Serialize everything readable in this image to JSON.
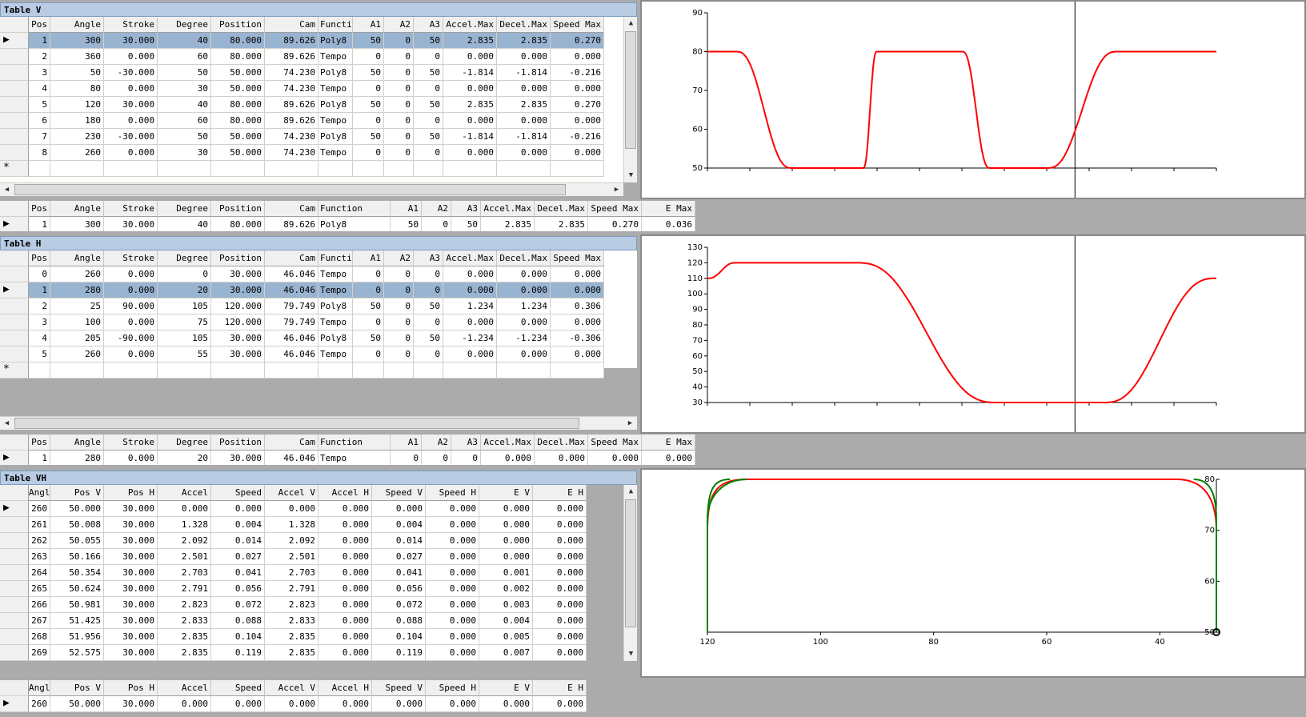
{
  "tableV": {
    "caption": "Table V",
    "headers": [
      "Pos",
      "Angle",
      "Stroke",
      "Degree",
      "Position",
      "Cam",
      "Functi",
      "A1",
      "A2",
      "A3",
      "Accel.Max",
      "Decel.Max",
      "Speed Max"
    ],
    "rows": [
      [
        "1",
        "300",
        "30.000",
        "40",
        "80.000",
        "89.626",
        "Poly8",
        "50",
        "0",
        "50",
        "2.835",
        "2.835",
        "0.270"
      ],
      [
        "2",
        "360",
        "0.000",
        "60",
        "80.000",
        "89.626",
        "Tempo",
        "0",
        "0",
        "0",
        "0.000",
        "0.000",
        "0.000"
      ],
      [
        "3",
        "50",
        "-30.000",
        "50",
        "50.000",
        "74.230",
        "Poly8",
        "50",
        "0",
        "50",
        "-1.814",
        "-1.814",
        "-0.216"
      ],
      [
        "4",
        "80",
        "0.000",
        "30",
        "50.000",
        "74.230",
        "Tempo",
        "0",
        "0",
        "0",
        "0.000",
        "0.000",
        "0.000"
      ],
      [
        "5",
        "120",
        "30.000",
        "40",
        "80.000",
        "89.626",
        "Poly8",
        "50",
        "0",
        "50",
        "2.835",
        "2.835",
        "0.270"
      ],
      [
        "6",
        "180",
        "0.000",
        "60",
        "80.000",
        "89.626",
        "Tempo",
        "0",
        "0",
        "0",
        "0.000",
        "0.000",
        "0.000"
      ],
      [
        "7",
        "230",
        "-30.000",
        "50",
        "50.000",
        "74.230",
        "Poly8",
        "50",
        "0",
        "50",
        "-1.814",
        "-1.814",
        "-0.216"
      ],
      [
        "8",
        "260",
        "0.000",
        "30",
        "50.000",
        "74.230",
        "Tempo",
        "0",
        "0",
        "0",
        "0.000",
        "0.000",
        "0.000"
      ]
    ],
    "selectedRow": 0,
    "newRowMarker": "*",
    "currentMarker": "▶"
  },
  "summaryV": {
    "headers": [
      "Pos",
      "Angle",
      "Stroke",
      "Degree",
      "Position",
      "Cam",
      "Function",
      "A1",
      "A2",
      "A3",
      "Accel.Max",
      "Decel.Max",
      "Speed Max",
      "E Max"
    ],
    "row": [
      "1",
      "300",
      "30.000",
      "40",
      "80.000",
      "89.626",
      "Poly8",
      "50",
      "0",
      "50",
      "2.835",
      "2.835",
      "0.270",
      "0.036"
    ]
  },
  "tableH": {
    "caption": "Table H",
    "headers": [
      "Pos",
      "Angle",
      "Stroke",
      "Degree",
      "Position",
      "Cam",
      "Function",
      "A1",
      "A2",
      "A3",
      "Accel.Max",
      "Decel.Max",
      "Speed Max"
    ],
    "rows": [
      [
        "0",
        "260",
        "0.000",
        "0",
        "30.000",
        "46.046",
        "Tempo",
        "0",
        "0",
        "0",
        "0.000",
        "0.000",
        "0.000"
      ],
      [
        "1",
        "280",
        "0.000",
        "20",
        "30.000",
        "46.046",
        "Tempo",
        "0",
        "0",
        "0",
        "0.000",
        "0.000",
        "0.000"
      ],
      [
        "2",
        "25",
        "90.000",
        "105",
        "120.000",
        "79.749",
        "Poly8",
        "50",
        "0",
        "50",
        "1.234",
        "1.234",
        "0.306"
      ],
      [
        "3",
        "100",
        "0.000",
        "75",
        "120.000",
        "79.749",
        "Tempo",
        "0",
        "0",
        "0",
        "0.000",
        "0.000",
        "0.000"
      ],
      [
        "4",
        "205",
        "-90.000",
        "105",
        "30.000",
        "46.046",
        "Poly8",
        "50",
        "0",
        "50",
        "-1.234",
        "-1.234",
        "-0.306"
      ],
      [
        "5",
        "260",
        "0.000",
        "55",
        "30.000",
        "46.046",
        "Tempo",
        "0",
        "0",
        "0",
        "0.000",
        "0.000",
        "0.000"
      ]
    ],
    "selectedRow": 1,
    "newRowMarker": "*",
    "currentMarker": "▶"
  },
  "summaryH": {
    "headers": [
      "Pos",
      "Angle",
      "Stroke",
      "Degree",
      "Position",
      "Cam",
      "Function",
      "A1",
      "A2",
      "A3",
      "Accel.Max",
      "Decel.Max",
      "Speed Max",
      "E Max"
    ],
    "row": [
      "1",
      "280",
      "0.000",
      "20",
      "30.000",
      "46.046",
      "Tempo",
      "0",
      "0",
      "0",
      "0.000",
      "0.000",
      "0.000",
      "0.000"
    ]
  },
  "tableVH": {
    "caption": "Table VH",
    "headers": [
      "Angl",
      "Pos V",
      "Pos H",
      "Accel",
      "Speed",
      "Accel V",
      "Accel H",
      "Speed V",
      "Speed H",
      "E V",
      "E H"
    ],
    "rows": [
      [
        "260",
        "50.000",
        "30.000",
        "0.000",
        "0.000",
        "0.000",
        "0.000",
        "0.000",
        "0.000",
        "0.000",
        "0.000"
      ],
      [
        "261",
        "50.008",
        "30.000",
        "1.328",
        "0.004",
        "1.328",
        "0.000",
        "0.004",
        "0.000",
        "0.000",
        "0.000"
      ],
      [
        "262",
        "50.055",
        "30.000",
        "2.092",
        "0.014",
        "2.092",
        "0.000",
        "0.014",
        "0.000",
        "0.000",
        "0.000"
      ],
      [
        "263",
        "50.166",
        "30.000",
        "2.501",
        "0.027",
        "2.501",
        "0.000",
        "0.027",
        "0.000",
        "0.000",
        "0.000"
      ],
      [
        "264",
        "50.354",
        "30.000",
        "2.703",
        "0.041",
        "2.703",
        "0.000",
        "0.041",
        "0.000",
        "0.001",
        "0.000"
      ],
      [
        "265",
        "50.624",
        "30.000",
        "2.791",
        "0.056",
        "2.791",
        "0.000",
        "0.056",
        "0.000",
        "0.002",
        "0.000"
      ],
      [
        "266",
        "50.981",
        "30.000",
        "2.823",
        "0.072",
        "2.823",
        "0.000",
        "0.072",
        "0.000",
        "0.003",
        "0.000"
      ],
      [
        "267",
        "51.425",
        "30.000",
        "2.833",
        "0.088",
        "2.833",
        "0.000",
        "0.088",
        "0.000",
        "0.004",
        "0.000"
      ],
      [
        "268",
        "51.956",
        "30.000",
        "2.835",
        "0.104",
        "2.835",
        "0.000",
        "0.104",
        "0.000",
        "0.005",
        "0.000"
      ],
      [
        "269",
        "52.575",
        "30.000",
        "2.835",
        "0.119",
        "2.835",
        "0.000",
        "0.119",
        "0.000",
        "0.007",
        "0.000"
      ]
    ],
    "currentMarker": "▶"
  },
  "summaryVH": {
    "headers": [
      "Angl",
      "Pos V",
      "Pos H",
      "Accel",
      "Speed",
      "Accel V",
      "Accel H",
      "Speed V",
      "Speed H",
      "E V",
      "E H"
    ],
    "row": [
      "260",
      "50.000",
      "30.000",
      "0.000",
      "0.000",
      "0.000",
      "0.000",
      "0.000",
      "0.000",
      "0.000",
      "0.000"
    ]
  },
  "chart_data": [
    {
      "type": "line",
      "title": "",
      "series": [
        {
          "color": "#ff0000",
          "x": [
            0,
            20,
            60,
            110,
            120,
            180,
            200,
            240,
            290,
            300,
            360
          ],
          "y": [
            80,
            80,
            50,
            50,
            80,
            80,
            50,
            50,
            80,
            80,
            80
          ]
        }
      ],
      "xlim": [
        0,
        360
      ],
      "ylim": [
        50,
        90
      ],
      "yticks": [
        "50",
        "60",
        "70",
        "80",
        "90"
      ],
      "cursor_x": 260,
      "grid": false
    },
    {
      "type": "line",
      "title": "",
      "series": [
        {
          "color": "#ff0000",
          "x": [
            0,
            20,
            105,
            205,
            280,
            360
          ],
          "y": [
            110,
            120,
            120,
            30,
            30,
            110
          ]
        }
      ],
      "xlim": [
        0,
        360
      ],
      "ylim": [
        30,
        130
      ],
      "yticks": [
        "30",
        "40",
        "50",
        "60",
        "70",
        "80",
        "90",
        "100",
        "110",
        "120",
        "130"
      ],
      "cursor_x": 260,
      "grid": false
    },
    {
      "type": "line",
      "title": "",
      "xlim": [
        120,
        30
      ],
      "ylim": [
        50,
        80
      ],
      "xticks": [
        "120",
        "100",
        "80",
        "60",
        "40"
      ],
      "yticks": [
        "50",
        "60",
        "70",
        "80"
      ],
      "series": [
        {
          "color": "#ff0000",
          "label_shown": false
        },
        {
          "color": "#008000",
          "label_shown": false
        }
      ],
      "grid": false
    }
  ],
  "colors": {
    "accent_selected": "#99b4d1",
    "caption_bg": "#b9cce4",
    "curve": "#ff0000",
    "curve2": "#008000"
  }
}
